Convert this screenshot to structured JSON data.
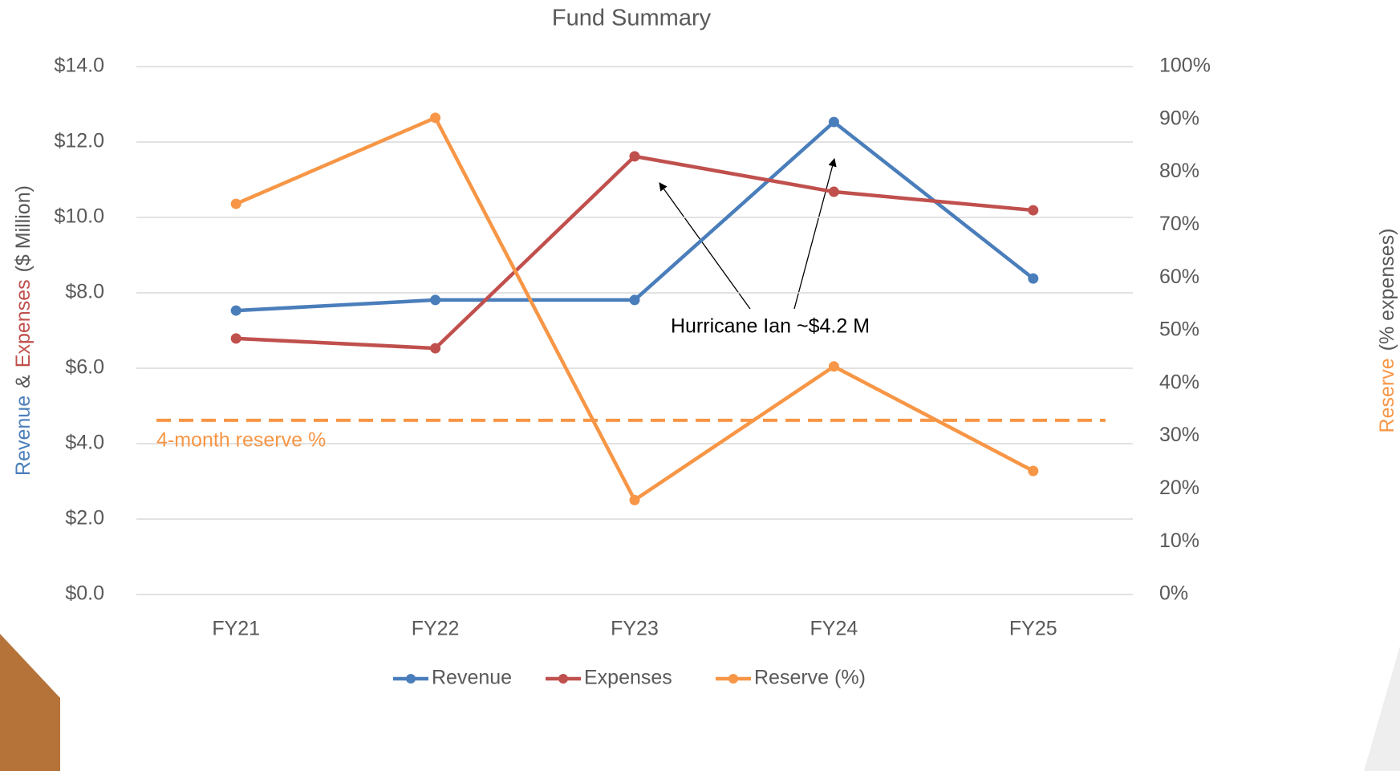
{
  "chart_data": {
    "type": "line",
    "title": "Fund Summary",
    "y_label_parts": [
      {
        "text": "Revenue",
        "color": "#4a7ebb"
      },
      {
        "text": "&",
        "color": "#595959"
      },
      {
        "text": "Expenses",
        "color": "#c0504d"
      },
      {
        "text": "($ Million)",
        "color": "#595959"
      }
    ],
    "y2_label_parts": [
      {
        "text": "Reserve",
        "color": "#f79646"
      },
      {
        "text": "(% expenses)",
        "color": "#595959"
      }
    ],
    "categories": [
      "FY21",
      "FY22",
      "FY23",
      "FY24",
      "FY25"
    ],
    "series": [
      {
        "name": "Revenue",
        "color": "#4a7ebb",
        "values": [
          7.53,
          7.81,
          7.81,
          12.53,
          8.38
        ]
      },
      {
        "name": "Expenses",
        "color": "#c0504d",
        "values": [
          6.79,
          6.53,
          11.62,
          10.68,
          10.19
        ]
      },
      {
        "name": "Reserve (%)",
        "color": "#f79646",
        "axis": "y2",
        "values": [
          74.0,
          90.3,
          17.9,
          43.2,
          23.4
        ]
      }
    ],
    "ylim": [
      0,
      14
    ],
    "yticks": [
      {
        "value": 0,
        "label": "$0.0"
      },
      {
        "value": 2,
        "label": "$2.0"
      },
      {
        "value": 4,
        "label": "$4.0"
      },
      {
        "value": 6,
        "label": "$6.0"
      },
      {
        "value": 8,
        "label": "$8.0"
      },
      {
        "value": 10,
        "label": "$10.0"
      },
      {
        "value": 12,
        "label": "$12.0"
      },
      {
        "value": 14,
        "label": "$14.0"
      }
    ],
    "y2lim": [
      0,
      100
    ],
    "y2ticks": [
      {
        "value": 0,
        "label": "0%"
      },
      {
        "value": 10,
        "label": "10%"
      },
      {
        "value": 20,
        "label": "20%"
      },
      {
        "value": 30,
        "label": "30%"
      },
      {
        "value": 40,
        "label": "40%"
      },
      {
        "value": 50,
        "label": "50%"
      },
      {
        "value": 60,
        "label": "60%"
      },
      {
        "value": 70,
        "label": "70%"
      },
      {
        "value": 80,
        "label": "80%"
      },
      {
        "value": 90,
        "label": "90%"
      },
      {
        "value": 100,
        "label": "100%"
      }
    ],
    "reference_line": {
      "value": 33,
      "axis": "y2",
      "label": "4-month reserve %",
      "color": "#f79646"
    },
    "annotation": "Hurricane Ian ~$4.2 M",
    "grid": true,
    "legend": "bottom"
  }
}
